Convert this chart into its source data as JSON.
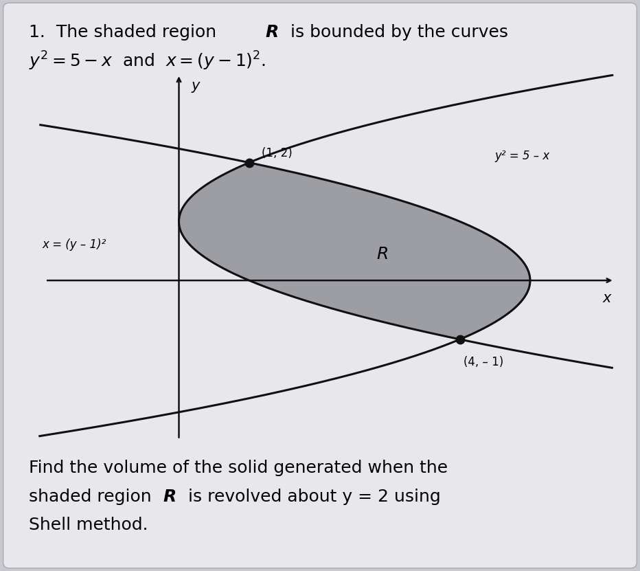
{
  "background_color": "#c8c8d0",
  "panel_color": "#e8e8ec",
  "shaded_color": "#909098",
  "shaded_alpha": 0.85,
  "curve_color": "#111111",
  "axis_color": "#111111",
  "dot_color": "#111111",
  "point1": [
    1,
    2
  ],
  "point2": [
    4,
    -1
  ],
  "point1_label": "(1, 2)",
  "point2_label": "(4, – 1)",
  "curve1_label": "y² = 5 – x",
  "curve2_label": "x = (y – 1)²",
  "region_label": "R",
  "xlabel": "x",
  "ylabel": "y",
  "xlim": [
    -2.0,
    6.2
  ],
  "ylim": [
    -2.8,
    3.5
  ],
  "font_size_title": 18,
  "font_size_labels": 13,
  "font_size_footer": 18
}
